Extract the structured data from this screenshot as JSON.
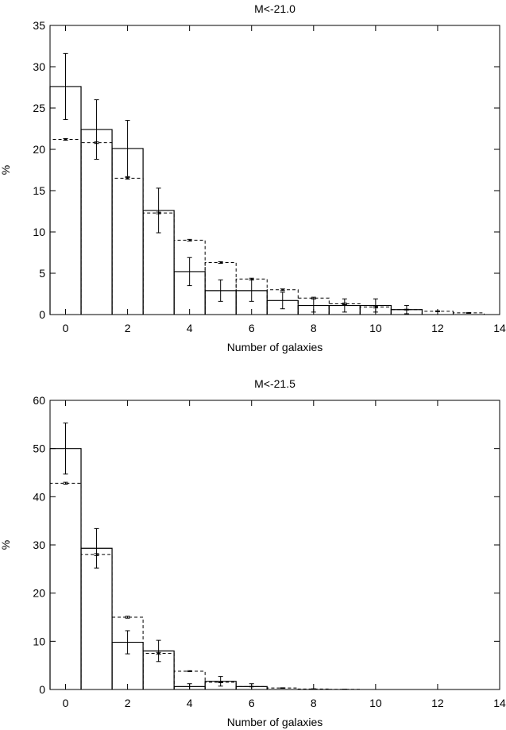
{
  "chart_data": [
    {
      "type": "bar",
      "title": "M<-21.0",
      "xlabel": "Number of galaxies",
      "ylabel": "%",
      "xlim": [
        -0.5,
        14
      ],
      "ylim": [
        0,
        35
      ],
      "xticks": [
        0,
        2,
        4,
        6,
        8,
        10,
        12,
        14
      ],
      "yticks": [
        0,
        5,
        10,
        15,
        20,
        25,
        30,
        35
      ],
      "grid": false,
      "categories": [
        0,
        1,
        2,
        3,
        4,
        5,
        6,
        7,
        8,
        9,
        10,
        11,
        12,
        13
      ],
      "series": [
        {
          "style": "solid",
          "values": [
            27.6,
            22.4,
            20.1,
            12.6,
            5.2,
            2.9,
            2.9,
            1.7,
            1.1,
            1.1,
            1.1,
            0.6,
            0,
            0
          ],
          "errors": [
            4.0,
            3.6,
            3.4,
            2.7,
            1.7,
            1.3,
            1.3,
            1.0,
            0.8,
            0.8,
            0.8,
            0.5,
            0,
            0
          ]
        },
        {
          "style": "dashed",
          "values": [
            21.2,
            20.8,
            16.5,
            12.3,
            9.0,
            6.3,
            4.3,
            3.0,
            2.0,
            1.3,
            0.9,
            0.6,
            0.4,
            0.2
          ],
          "errors": [
            0.1,
            0.1,
            0.1,
            0.1,
            0.1,
            0.1,
            0.1,
            0.1,
            0.1,
            0.1,
            0.1,
            0.05,
            0.05,
            0.05
          ]
        }
      ]
    },
    {
      "type": "bar",
      "title": "M<-21.5",
      "xlabel": "Number of galaxies",
      "ylabel": "%",
      "xlim": [
        -0.5,
        14
      ],
      "ylim": [
        0,
        60
      ],
      "xticks": [
        0,
        2,
        4,
        6,
        8,
        10,
        12,
        14
      ],
      "yticks": [
        0,
        10,
        20,
        30,
        40,
        50,
        60
      ],
      "grid": false,
      "categories": [
        0,
        1,
        2,
        3,
        4,
        5,
        6,
        7,
        8,
        9
      ],
      "series": [
        {
          "style": "solid",
          "values": [
            50.0,
            29.3,
            9.8,
            8.0,
            0.6,
            1.7,
            0.6,
            0,
            0,
            0
          ],
          "errors": [
            5.3,
            4.1,
            2.4,
            2.2,
            0.6,
            1.0,
            0.6,
            0,
            0,
            0
          ]
        },
        {
          "style": "dashed",
          "values": [
            42.8,
            28.0,
            15.0,
            7.5,
            3.8,
            1.5,
            0.6,
            0.3,
            0.1,
            0.05
          ],
          "errors": [
            0.2,
            0.2,
            0.2,
            0.2,
            0.1,
            0.1,
            0.05,
            0.05,
            0.05,
            0.02
          ]
        }
      ]
    }
  ]
}
